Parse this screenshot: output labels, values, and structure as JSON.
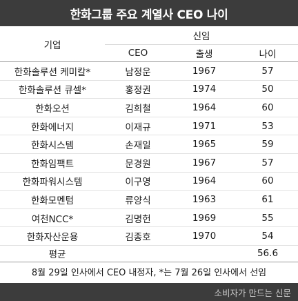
{
  "title": "한화그룹 주요 계열사 CEO 나이",
  "headers": {
    "company": "기업",
    "group": "신임",
    "ceo": "CEO",
    "birth": "출생",
    "age": "나이"
  },
  "rows": [
    {
      "company": "한화솔루션 케미칼*",
      "ceo": "남정운",
      "birth": "1967",
      "age": "57"
    },
    {
      "company": "한화솔루션 큐셀*",
      "ceo": "홍정권",
      "birth": "1974",
      "age": "50"
    },
    {
      "company": "한화오션",
      "ceo": "김희철",
      "birth": "1964",
      "age": "60"
    },
    {
      "company": "한화에너지",
      "ceo": "이재규",
      "birth": "1971",
      "age": "53"
    },
    {
      "company": "한화시스템",
      "ceo": "손재일",
      "birth": "1965",
      "age": "59"
    },
    {
      "company": "한화임팩트",
      "ceo": "문경원",
      "birth": "1967",
      "age": "57"
    },
    {
      "company": "한화파워시스템",
      "ceo": "이구영",
      "birth": "1964",
      "age": "60"
    },
    {
      "company": "한화모멘텀",
      "ceo": "류양식",
      "birth": "1963",
      "age": "61"
    },
    {
      "company": "여천NCC*",
      "ceo": "김명헌",
      "birth": "1969",
      "age": "55"
    },
    {
      "company": "한화자산운용",
      "ceo": "김종호",
      "birth": "1970",
      "age": "54"
    }
  ],
  "average": {
    "label": "평균",
    "value": "56.6"
  },
  "note": "8월 29일 인사에서 CEO 내정자, *는 7월 26일 인사에서 선임",
  "footer": "소비자가 만드는 신문"
}
